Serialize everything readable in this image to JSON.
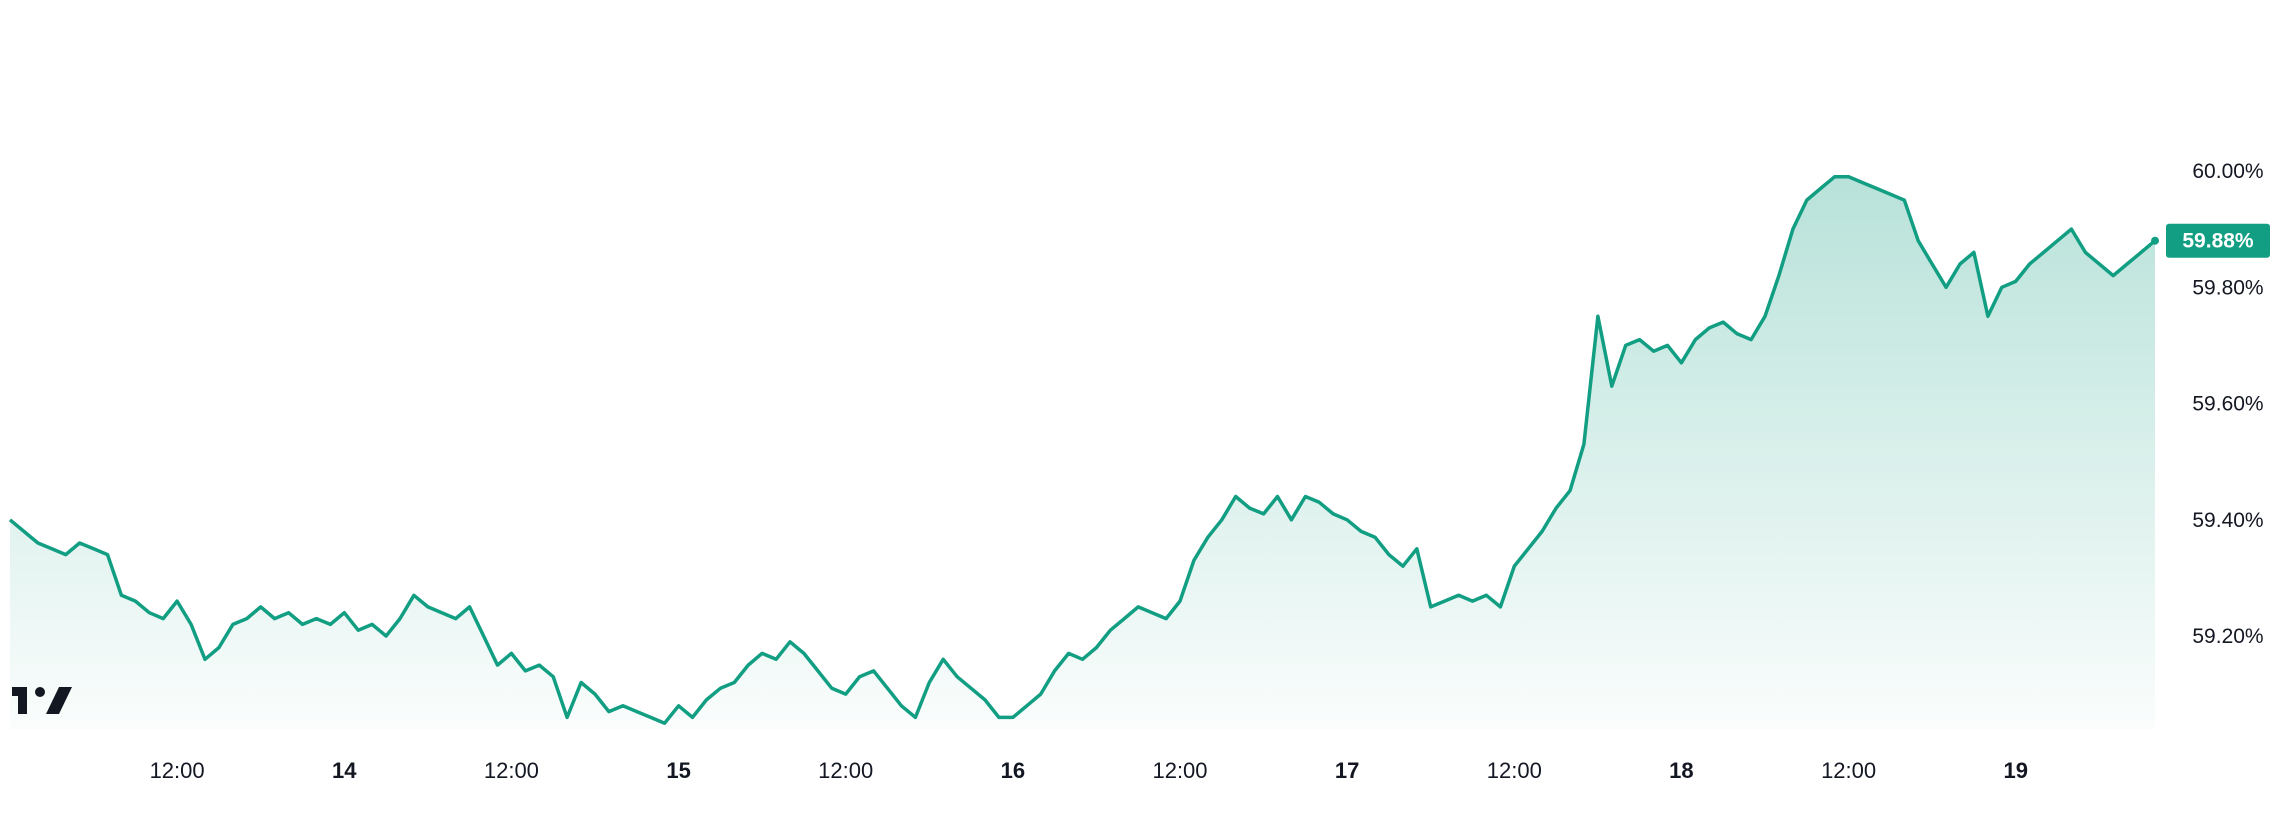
{
  "app": {
    "logo_name": "tradingview-logo"
  },
  "colors": {
    "line": "#129e82",
    "fill": "#129e82",
    "label_bg": "#129e82",
    "axis_text": "#131722"
  },
  "chart_data": {
    "type": "area",
    "title": "",
    "xlabel": "",
    "ylabel": "",
    "ylim": [
      59.04,
      60.12
    ],
    "y_unit": "%",
    "y_ticks": [
      "60.00%",
      "59.80%",
      "59.60%",
      "59.40%",
      "59.20%"
    ],
    "y_tick_values": [
      60.0,
      59.8,
      59.6,
      59.4,
      59.2
    ],
    "x_ticks": [
      {
        "label": "12:00",
        "bold": false,
        "t": 12
      },
      {
        "label": "14",
        "bold": true,
        "t": 24
      },
      {
        "label": "12:00",
        "bold": false,
        "t": 36
      },
      {
        "label": "15",
        "bold": true,
        "t": 48
      },
      {
        "label": "12:00",
        "bold": false,
        "t": 60
      },
      {
        "label": "16",
        "bold": true,
        "t": 72
      },
      {
        "label": "12:00",
        "bold": false,
        "t": 84
      },
      {
        "label": "17",
        "bold": true,
        "t": 96
      },
      {
        "label": "12:00",
        "bold": false,
        "t": 108
      },
      {
        "label": "18",
        "bold": true,
        "t": 120
      },
      {
        "label": "12:00",
        "bold": false,
        "t": 132
      },
      {
        "label": "19",
        "bold": true,
        "t": 144
      }
    ],
    "last_value": 59.88,
    "last_label": "59.88%",
    "series": [
      {
        "t": [
          0,
          1,
          2,
          3,
          4,
          5,
          6,
          7,
          8,
          9,
          10,
          11,
          12,
          13,
          14,
          15,
          16,
          17,
          18,
          19,
          20,
          21,
          22,
          23,
          24,
          25,
          26,
          27,
          28,
          29,
          30,
          31,
          32,
          33,
          34,
          35,
          36,
          37,
          38,
          39,
          40,
          41,
          42,
          43,
          44,
          45,
          46,
          47,
          48,
          49,
          50,
          51,
          52,
          53,
          54,
          55,
          56,
          57,
          58,
          59,
          60,
          61,
          62,
          63,
          64,
          65,
          66,
          67,
          68,
          69,
          70,
          71,
          72,
          73,
          74,
          75,
          76,
          77,
          78,
          79,
          80,
          81,
          82,
          83,
          84,
          85,
          86,
          87,
          88,
          89,
          90,
          91,
          92,
          93,
          94,
          95,
          96,
          97,
          98,
          99,
          100,
          101,
          102,
          103,
          104,
          105,
          106,
          107,
          108,
          109,
          110,
          111,
          112,
          113,
          114,
          115,
          116,
          117,
          118,
          119,
          120,
          121,
          122,
          123,
          124,
          125,
          126,
          127,
          128,
          129,
          130,
          131,
          132,
          133,
          134,
          135,
          136,
          137,
          138,
          139,
          140,
          141,
          142,
          143,
          144,
          145,
          146,
          147,
          148,
          149,
          150,
          151,
          152,
          153,
          154
        ],
        "values": [
          59.4,
          59.38,
          59.36,
          59.35,
          59.34,
          59.36,
          59.35,
          59.34,
          59.27,
          59.26,
          59.24,
          59.23,
          59.26,
          59.22,
          59.16,
          59.18,
          59.22,
          59.23,
          59.25,
          59.23,
          59.24,
          59.22,
          59.23,
          59.22,
          59.24,
          59.21,
          59.22,
          59.2,
          59.23,
          59.27,
          59.25,
          59.24,
          59.23,
          59.25,
          59.2,
          59.15,
          59.17,
          59.14,
          59.15,
          59.13,
          59.06,
          59.12,
          59.1,
          59.07,
          59.08,
          59.07,
          59.06,
          59.05,
          59.08,
          59.06,
          59.09,
          59.11,
          59.12,
          59.15,
          59.17,
          59.16,
          59.19,
          59.17,
          59.14,
          59.11,
          59.1,
          59.13,
          59.14,
          59.11,
          59.08,
          59.06,
          59.12,
          59.16,
          59.13,
          59.11,
          59.09,
          59.06,
          59.06,
          59.08,
          59.1,
          59.14,
          59.17,
          59.16,
          59.18,
          59.21,
          59.23,
          59.25,
          59.24,
          59.23,
          59.26,
          59.33,
          59.37,
          59.4,
          59.44,
          59.42,
          59.41,
          59.44,
          59.4,
          59.44,
          59.43,
          59.41,
          59.4,
          59.38,
          59.37,
          59.34,
          59.32,
          59.35,
          59.25,
          59.26,
          59.27,
          59.26,
          59.27,
          59.25,
          59.32,
          59.35,
          59.38,
          59.42,
          59.45,
          59.53,
          59.75,
          59.63,
          59.7,
          59.71,
          59.69,
          59.7,
          59.67,
          59.71,
          59.73,
          59.74,
          59.72,
          59.71,
          59.75,
          59.82,
          59.9,
          59.95,
          59.97,
          59.99,
          59.99,
          59.98,
          59.97,
          59.96,
          59.95,
          59.88,
          59.84,
          59.8,
          59.84,
          59.86,
          59.75,
          59.8,
          59.81,
          59.84,
          59.86,
          59.88,
          59.9,
          59.86,
          59.84,
          59.82,
          59.84,
          59.86,
          59.88
        ]
      }
    ]
  }
}
